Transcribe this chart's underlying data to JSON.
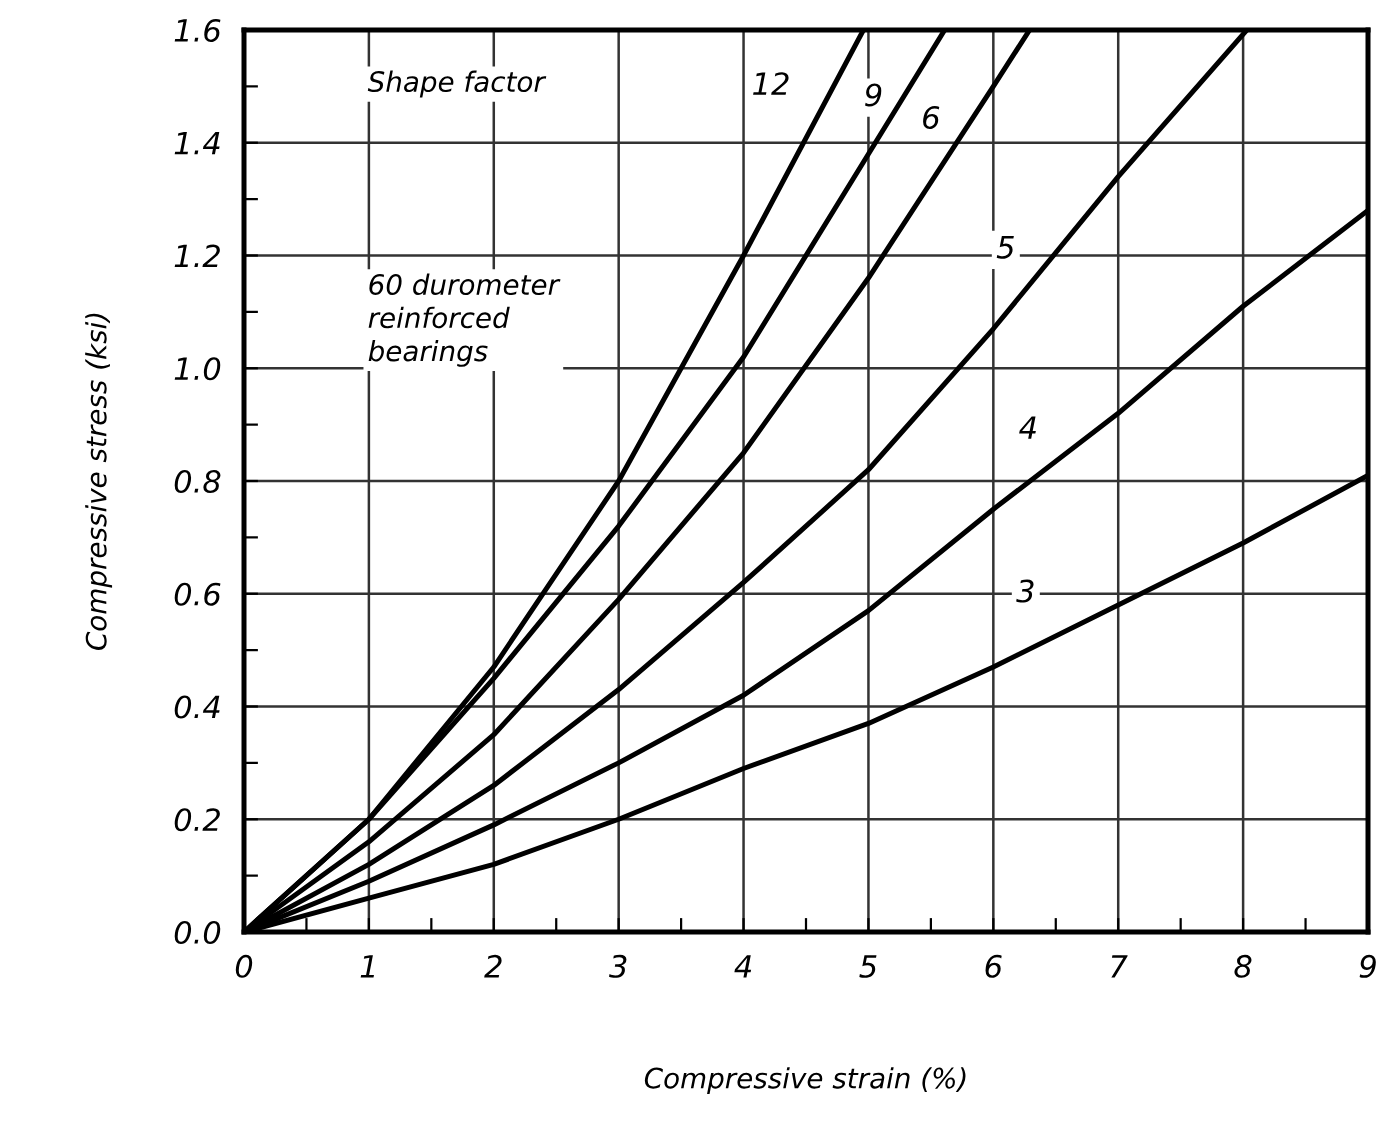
{
  "chart_data": {
    "type": "line",
    "xlabel": "Compressive strain (%)",
    "ylabel": "Compressive stress (ksi)",
    "series": [
      {
        "color": "#000000",
        "x": [
          0,
          1,
          2,
          3,
          4,
          4.96
        ],
        "values": [
          0,
          0.2,
          0.47,
          0.8,
          1.2,
          1.6
        ]
      },
      {
        "color": "#000000",
        "x": [
          0,
          1,
          2,
          3,
          4,
          5,
          5.61
        ],
        "values": [
          0,
          0.2,
          0.45,
          0.72,
          1.02,
          1.38,
          1.6
        ]
      },
      {
        "color": "#000000",
        "x": [
          0,
          1,
          2,
          3,
          4,
          5,
          6,
          6.29
        ],
        "values": [
          0,
          0.16,
          0.35,
          0.59,
          0.85,
          1.16,
          1.5,
          1.6
        ]
      },
      {
        "color": "#000000",
        "x": [
          0,
          1,
          2,
          3,
          4,
          5,
          6,
          7,
          8.03
        ],
        "values": [
          0,
          0.12,
          0.26,
          0.43,
          0.62,
          0.82,
          1.07,
          1.34,
          1.6
        ]
      },
      {
        "color": "#000000",
        "x": [
          0,
          1,
          2,
          3,
          4,
          5,
          6,
          7,
          8,
          9
        ],
        "values": [
          0,
          0.09,
          0.19,
          0.3,
          0.42,
          0.57,
          0.75,
          0.92,
          1.11,
          1.28
        ]
      },
      {
        "color": "#000000",
        "x": [
          0,
          1,
          2,
          3,
          4,
          5,
          6,
          7,
          8,
          9
        ],
        "values": [
          0,
          0.06,
          0.12,
          0.2,
          0.29,
          0.37,
          0.47,
          0.58,
          0.69,
          0.81
        ]
      }
    ],
    "annotations": [
      "Shape factor",
      "60 durometer\nreinforced\nbearings",
      {
        "text": "12",
        "x": 4.22,
        "y": 1.5
      },
      {
        "text": "9",
        "x": 5.04,
        "y": 1.48
      },
      {
        "text": "6",
        "x": 5.5,
        "y": 1.44
      },
      {
        "text": "5",
        "x": 6.1,
        "y": 1.21
      },
      {
        "text": "4",
        "x": 6.28,
        "y": 0.89
      },
      {
        "text": "3",
        "x": 6.26,
        "y": 0.6
      }
    ],
    "xlim": [
      0,
      9
    ],
    "ylim": [
      0,
      1.6
    ],
    "xticks": [
      0,
      {
        "value": 0.5,
        "label": null
      },
      1,
      {
        "value": 1.5,
        "label": null
      },
      2,
      {
        "value": 2.5,
        "label": null
      },
      3,
      {
        "value": 3.5,
        "label": null
      },
      4,
      {
        "value": 4.5,
        "label": null
      },
      5,
      {
        "value": 5.5,
        "label": null
      },
      6,
      {
        "value": 6.5,
        "label": null
      },
      7,
      {
        "value": 7.5,
        "label": null
      },
      8,
      {
        "value": 8.5,
        "label": null
      },
      9
    ],
    "yticks": [
      {
        "value": 0,
        "label": "0.0"
      },
      {
        "value": 0.1,
        "label": null
      },
      {
        "value": 0.2,
        "label": "0.2"
      },
      {
        "value": 0.3,
        "label": null
      },
      {
        "value": 0.4,
        "label": "0.4"
      },
      {
        "value": 0.5,
        "label": null
      },
      {
        "value": 0.6,
        "label": "0.6"
      },
      {
        "value": 0.7,
        "label": null
      },
      {
        "value": 0.8,
        "label": "0.8"
      },
      {
        "value": 0.9,
        "label": null
      },
      {
        "value": 1.0,
        "label": "1.0"
      },
      {
        "value": 1.1,
        "label": null
      },
      {
        "value": 1.2,
        "label": "1.2"
      },
      {
        "value": 1.3,
        "label": null
      },
      {
        "value": 1.4,
        "label": "1.4"
      },
      {
        "value": 1.5,
        "label": null
      },
      {
        "value": 1.6,
        "label": "1.6"
      }
    ],
    "grid": true,
    "legend": false,
    "marker": "none",
    "line_style": "solid"
  }
}
